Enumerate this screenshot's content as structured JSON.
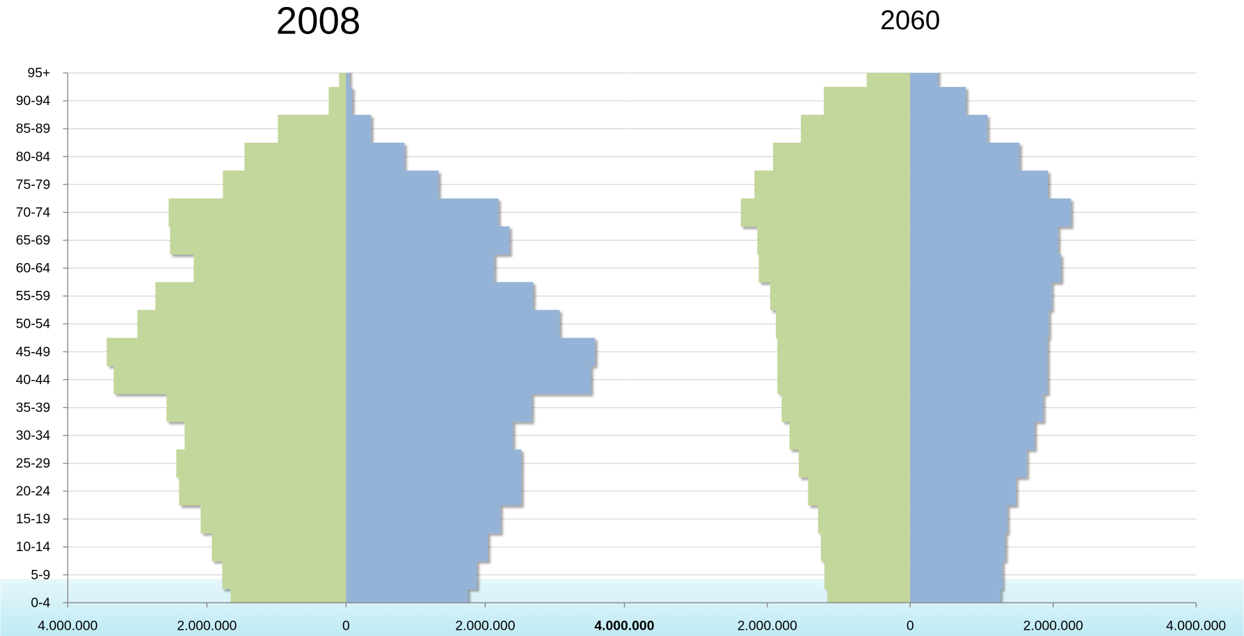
{
  "chart_data": [
    {
      "type": "pyramid",
      "title": "2008",
      "categories": [
        "0-4",
        "5-9",
        "10-14",
        "15-19",
        "20-24",
        "25-29",
        "30-34",
        "35-39",
        "40-44",
        "45-49",
        "50-54",
        "55-59",
        "60-64",
        "65-69",
        "70-74",
        "75-79",
        "80-84",
        "85-89",
        "90-94",
        "95+"
      ],
      "series": [
        {
          "color": "#c3d69b",
          "values": [
            -1660000,
            -1780000,
            -1930000,
            -2090000,
            -2400000,
            -2440000,
            -2320000,
            -2580000,
            -3340000,
            -3440000,
            -3000000,
            -2740000,
            -2190000,
            -2530000,
            -2550000,
            -1770000,
            -1460000,
            -980000,
            -250000,
            -100000
          ]
        },
        {
          "color": "#95b3d7",
          "values": [
            1750000,
            1880000,
            2040000,
            2220000,
            2520000,
            2520000,
            2400000,
            2670000,
            3520000,
            3580000,
            3070000,
            2690000,
            2130000,
            2350000,
            2190000,
            1330000,
            840000,
            360000,
            90000,
            50000
          ]
        }
      ],
      "xlim": [
        -4000000,
        4000000
      ],
      "xticks": [
        {
          "value": -4000000,
          "label": "4.000.000"
        },
        {
          "value": -2000000,
          "label": "2.000.000"
        },
        0,
        {
          "value": 2000000,
          "label": "2.000.000"
        },
        {
          "value": 4000000,
          "label": "4.000.000"
        }
      ],
      "grid": true
    },
    {
      "type": "pyramid",
      "title": "2060",
      "series": [
        {
          "color": "#c3d69b",
          "values": [
            -1160000,
            -1200000,
            -1250000,
            -1290000,
            -1430000,
            -1560000,
            -1690000,
            -1800000,
            -1860000,
            -1860000,
            -1880000,
            -1960000,
            -2120000,
            -2140000,
            -2370000,
            -2180000,
            -1920000,
            -1530000,
            -1210000,
            -610000
          ]
        },
        {
          "color": "#95b3d7",
          "values": [
            1260000,
            1290000,
            1330000,
            1360000,
            1480000,
            1630000,
            1740000,
            1860000,
            1920000,
            1920000,
            1940000,
            1980000,
            2110000,
            2070000,
            2250000,
            1930000,
            1530000,
            1080000,
            780000,
            390000
          ]
        }
      ],
      "xlim": [
        -4000000,
        4000000
      ],
      "xticks": [
        {
          "value": -2000000,
          "label": "2.000.000"
        },
        0,
        {
          "value": 2000000,
          "label": "2.000.000"
        },
        {
          "value": 4000000,
          "label": "4.000.000"
        }
      ],
      "grid": true
    }
  ]
}
